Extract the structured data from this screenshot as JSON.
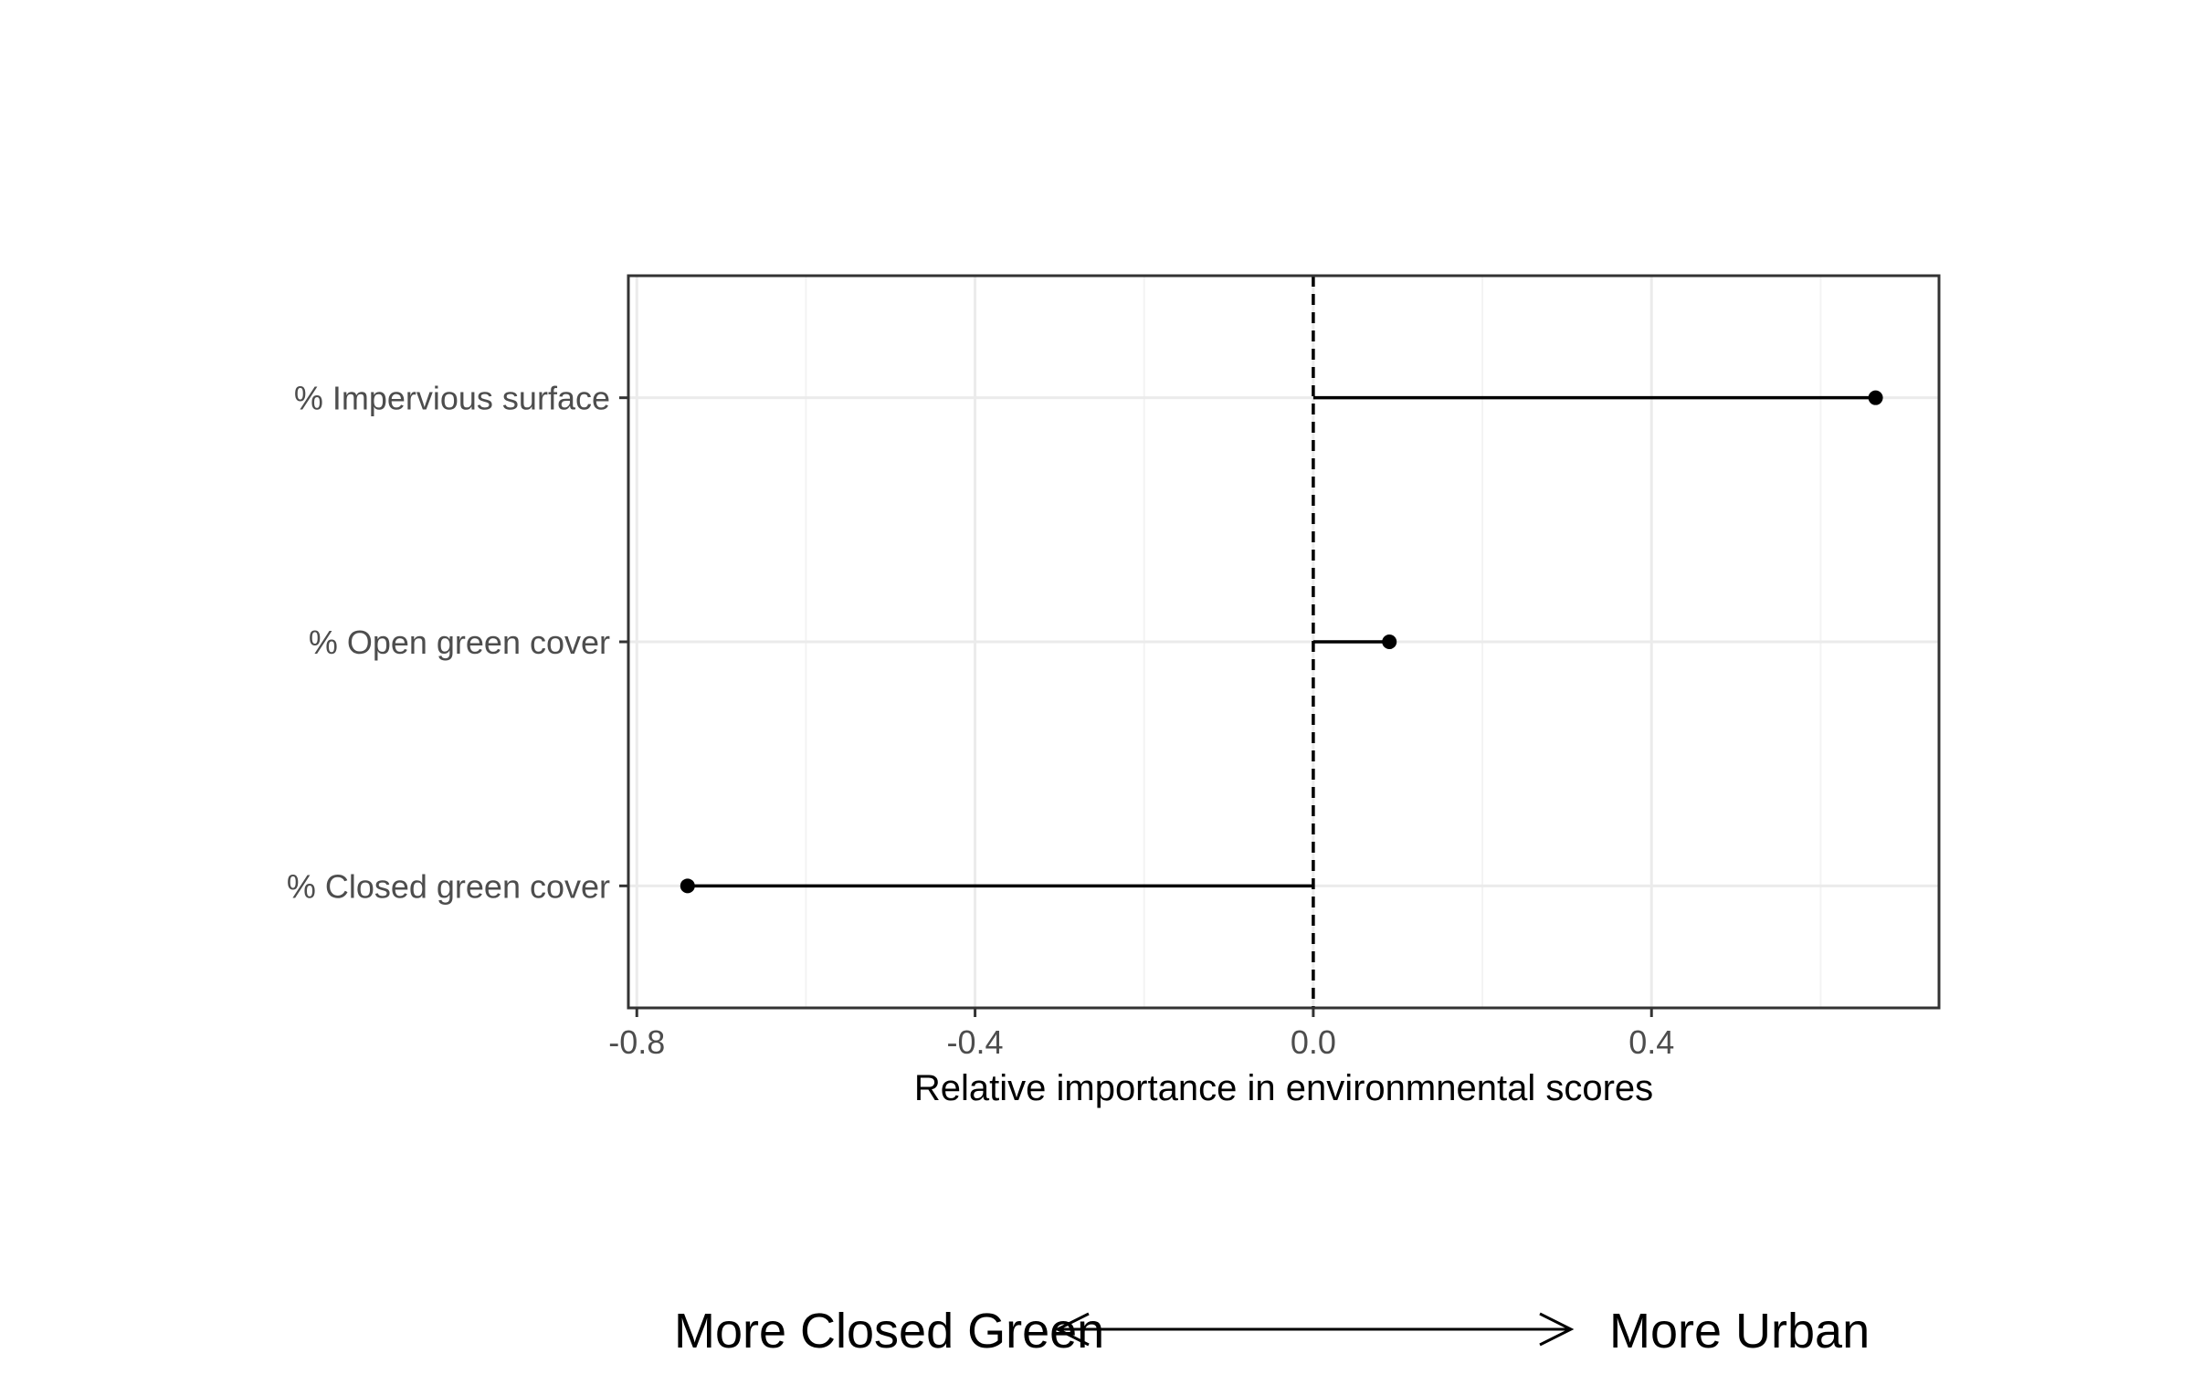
{
  "chart_data": {
    "type": "lollipop",
    "title": "",
    "xlabel": "Relative importance in environmnental scores",
    "ylabel": "",
    "xlim": [
      -0.81,
      0.74
    ],
    "x_ticks": [
      -0.8,
      -0.4,
      0.0,
      0.4
    ],
    "x_tick_labels": [
      "-0.8",
      "-0.4",
      "0.0",
      "0.4"
    ],
    "categories": [
      "% Impervious surface",
      "% Open green cover",
      "% Closed green cover"
    ],
    "values": [
      0.665,
      0.09,
      -0.74
    ],
    "reference_line": 0,
    "grid": true,
    "legend": "none",
    "direction_arrow": {
      "left_label": "More Closed Green",
      "right_label": "More Urban"
    },
    "colors": {
      "point": "#000000",
      "grid_major": "#ebebeb",
      "grid_minor": "#f3f3f3",
      "axis_text": "#4d4d4d",
      "panel_border": "#333333"
    }
  }
}
